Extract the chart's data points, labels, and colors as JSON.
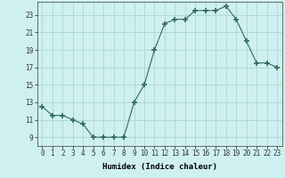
{
  "x": [
    0,
    1,
    2,
    3,
    4,
    5,
    6,
    7,
    8,
    9,
    10,
    11,
    12,
    13,
    14,
    15,
    16,
    17,
    18,
    19,
    20,
    21,
    22,
    23
  ],
  "y": [
    12.5,
    11.5,
    11.5,
    11.0,
    10.5,
    9.0,
    9.0,
    9.0,
    9.0,
    13.0,
    15.0,
    19.0,
    22.0,
    22.5,
    22.5,
    23.5,
    23.5,
    23.5,
    24.0,
    22.5,
    20.0,
    17.5,
    17.5,
    17.0
  ],
  "line_color": "#2e6b5e",
  "marker": "+",
  "marker_size": 4,
  "bg_color": "#cff0f0",
  "grid_color": "#aad4d4",
  "xlabel": "Humidex (Indice chaleur)",
  "xlim": [
    -0.5,
    23.5
  ],
  "ylim": [
    8.0,
    24.5
  ],
  "yticks": [
    9,
    11,
    13,
    15,
    17,
    19,
    21,
    23
  ],
  "xticks": [
    0,
    1,
    2,
    3,
    4,
    5,
    6,
    7,
    8,
    9,
    10,
    11,
    12,
    13,
    14,
    15,
    16,
    17,
    18,
    19,
    20,
    21,
    22,
    23
  ],
  "xtick_labels": [
    "0",
    "1",
    "2",
    "3",
    "4",
    "5",
    "6",
    "7",
    "8",
    "9",
    "10",
    "11",
    "12",
    "13",
    "14",
    "15",
    "16",
    "17",
    "18",
    "19",
    "20",
    "21",
    "22",
    "23"
  ],
  "xlabel_fontsize": 6.5,
  "tick_fontsize": 5.5
}
